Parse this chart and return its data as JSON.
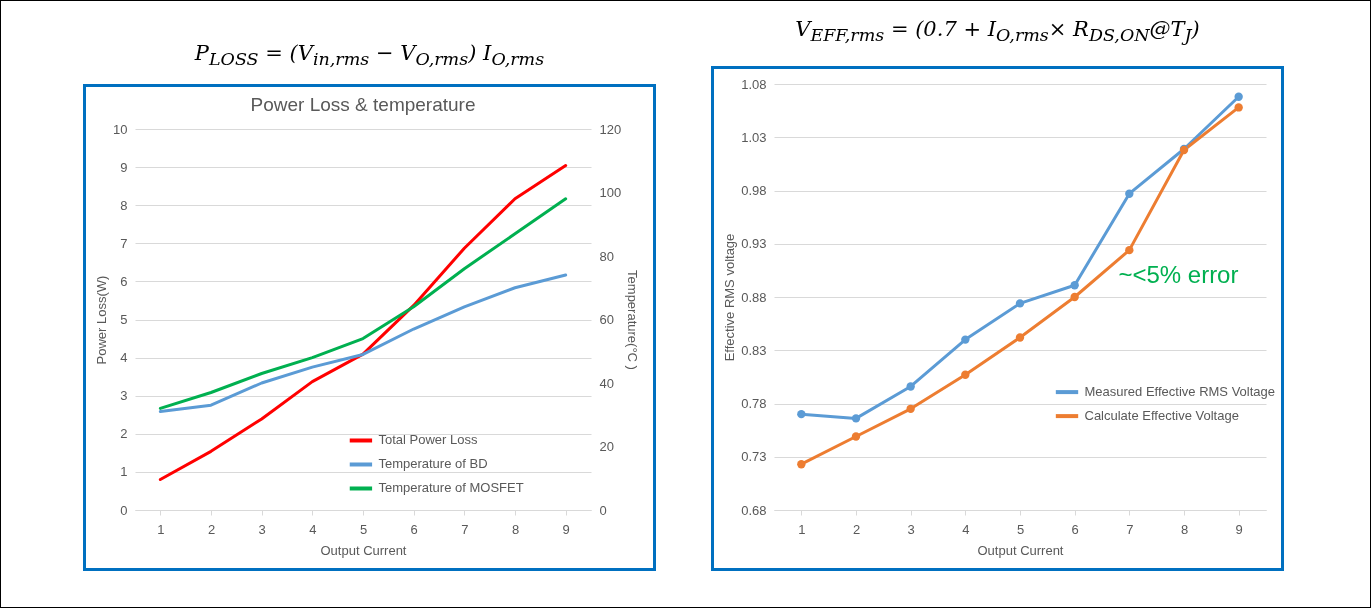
{
  "chart_data": [
    {
      "type": "line",
      "title": "Power Loss & temperature",
      "xlabel": "Output Current",
      "ylabel": "Power Loss(W)",
      "y2label": "Temperature(°C )",
      "annotations": [
        "P$_{LOSS}$ = (V$_{in,rms}$ − V$_{O,rms}$) I$_{O,rms}$"
      ],
      "categories": [
        "1",
        "2",
        "3",
        "4",
        "5",
        "6",
        "7",
        "8",
        "9"
      ],
      "series": [
        {
          "name": "Total Power Loss",
          "color": "#ff0000",
          "values": [
            0.8,
            1.54,
            2.39,
            3.37,
            4.09,
            5.37,
            6.87,
            8.17,
            9.04
          ]
        },
        {
          "name": "Temperature of BD",
          "color": "#5b9bd5",
          "axis": "y2",
          "values": [
            31,
            33,
            40,
            45,
            49,
            57,
            64,
            70,
            74
          ]
        },
        {
          "name": "Temperature of MOSFET",
          "color": "#00b050",
          "axis": "y2",
          "values": [
            32,
            37,
            43,
            48,
            54,
            64,
            76,
            87,
            98
          ]
        }
      ],
      "ylim": [
        0,
        10
      ],
      "yticks": [
        0,
        1,
        2,
        3,
        4,
        5,
        6,
        7,
        8,
        9,
        10
      ],
      "y2lim": [
        0,
        120
      ],
      "y2ticks": [
        0,
        20,
        40,
        60,
        80,
        100,
        120
      ],
      "grid": "y",
      "legend": "bottom",
      "marker": "none"
    },
    {
      "type": "line",
      "xlabel": "Output Current",
      "ylabel": "Effective RMS voltage",
      "annotations": [
        "V$_{EFF,rms}$ = (0.7 + I$_{O,rms}$× R$_{DS,ON}$@T$_{J}$)",
        "~<5% error"
      ],
      "categories": [
        "1",
        "2",
        "3",
        "4",
        "5",
        "6",
        "7",
        "8",
        "9"
      ],
      "series": [
        {
          "name": "Measured Effective RMS Voltage",
          "color": "#5b9bd5",
          "values": [
            0.77,
            0.766,
            0.796,
            0.84,
            0.874,
            0.891,
            0.977,
            1.019,
            1.068
          ]
        },
        {
          "name": "Calculate Effective Voltage",
          "color": "#ed7d31",
          "values": [
            0.723,
            0.749,
            0.775,
            0.807,
            0.842,
            0.88,
            0.924,
            1.018,
            1.058
          ]
        }
      ],
      "ylim": [
        0.68,
        1.08
      ],
      "yticks": [
        0.68,
        0.73,
        0.78,
        0.83,
        0.88,
        0.93,
        0.98,
        1.03,
        1.08
      ],
      "grid": "y",
      "legend": "right",
      "marker": "circle"
    }
  ]
}
